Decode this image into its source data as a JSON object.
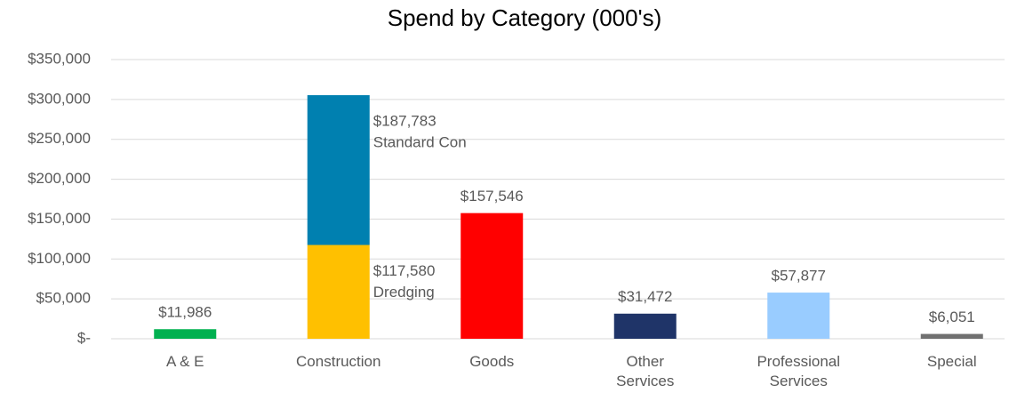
{
  "chart_data": {
    "type": "bar",
    "title": "Spend by Category (000's)",
    "categories": [
      "A & E",
      "Construction",
      "Goods",
      "Other Services",
      "Professional Services",
      "Special"
    ],
    "values": [
      11986,
      null,
      157546,
      31472,
      57877,
      6051
    ],
    "value_labels": [
      "$11,986",
      null,
      "$157,546",
      "$31,472",
      "$57,877",
      "$6,051"
    ],
    "colors": [
      "#00B050",
      null,
      "#FF0000",
      "#1F3468",
      "#99CCFF",
      "#707070"
    ],
    "series": [
      {
        "name": "Dredging",
        "color": "#FFC000",
        "values": [
          null,
          117580,
          null,
          null,
          null,
          null
        ],
        "value_labels": [
          null,
          "$117,580",
          null,
          null,
          null,
          null
        ]
      },
      {
        "name": "Standard Con",
        "color": "#0080B0",
        "values": [
          null,
          187783,
          null,
          null,
          null,
          null
        ],
        "value_labels": [
          null,
          "$187,783",
          null,
          null,
          null,
          null
        ]
      }
    ],
    "ylim": [
      0,
      350000
    ],
    "yticks": [
      {
        "value": 0,
        "label": "$-"
      },
      {
        "value": 50000,
        "label": "$50,000"
      },
      {
        "value": 100000,
        "label": "$100,000"
      },
      {
        "value": 150000,
        "label": "$150,000"
      },
      {
        "value": 200000,
        "label": "$200,000"
      },
      {
        "value": 250000,
        "label": "$250,000"
      },
      {
        "value": 300000,
        "label": "$300,000"
      },
      {
        "value": 350000,
        "label": "$350,000"
      }
    ],
    "grid": true
  }
}
